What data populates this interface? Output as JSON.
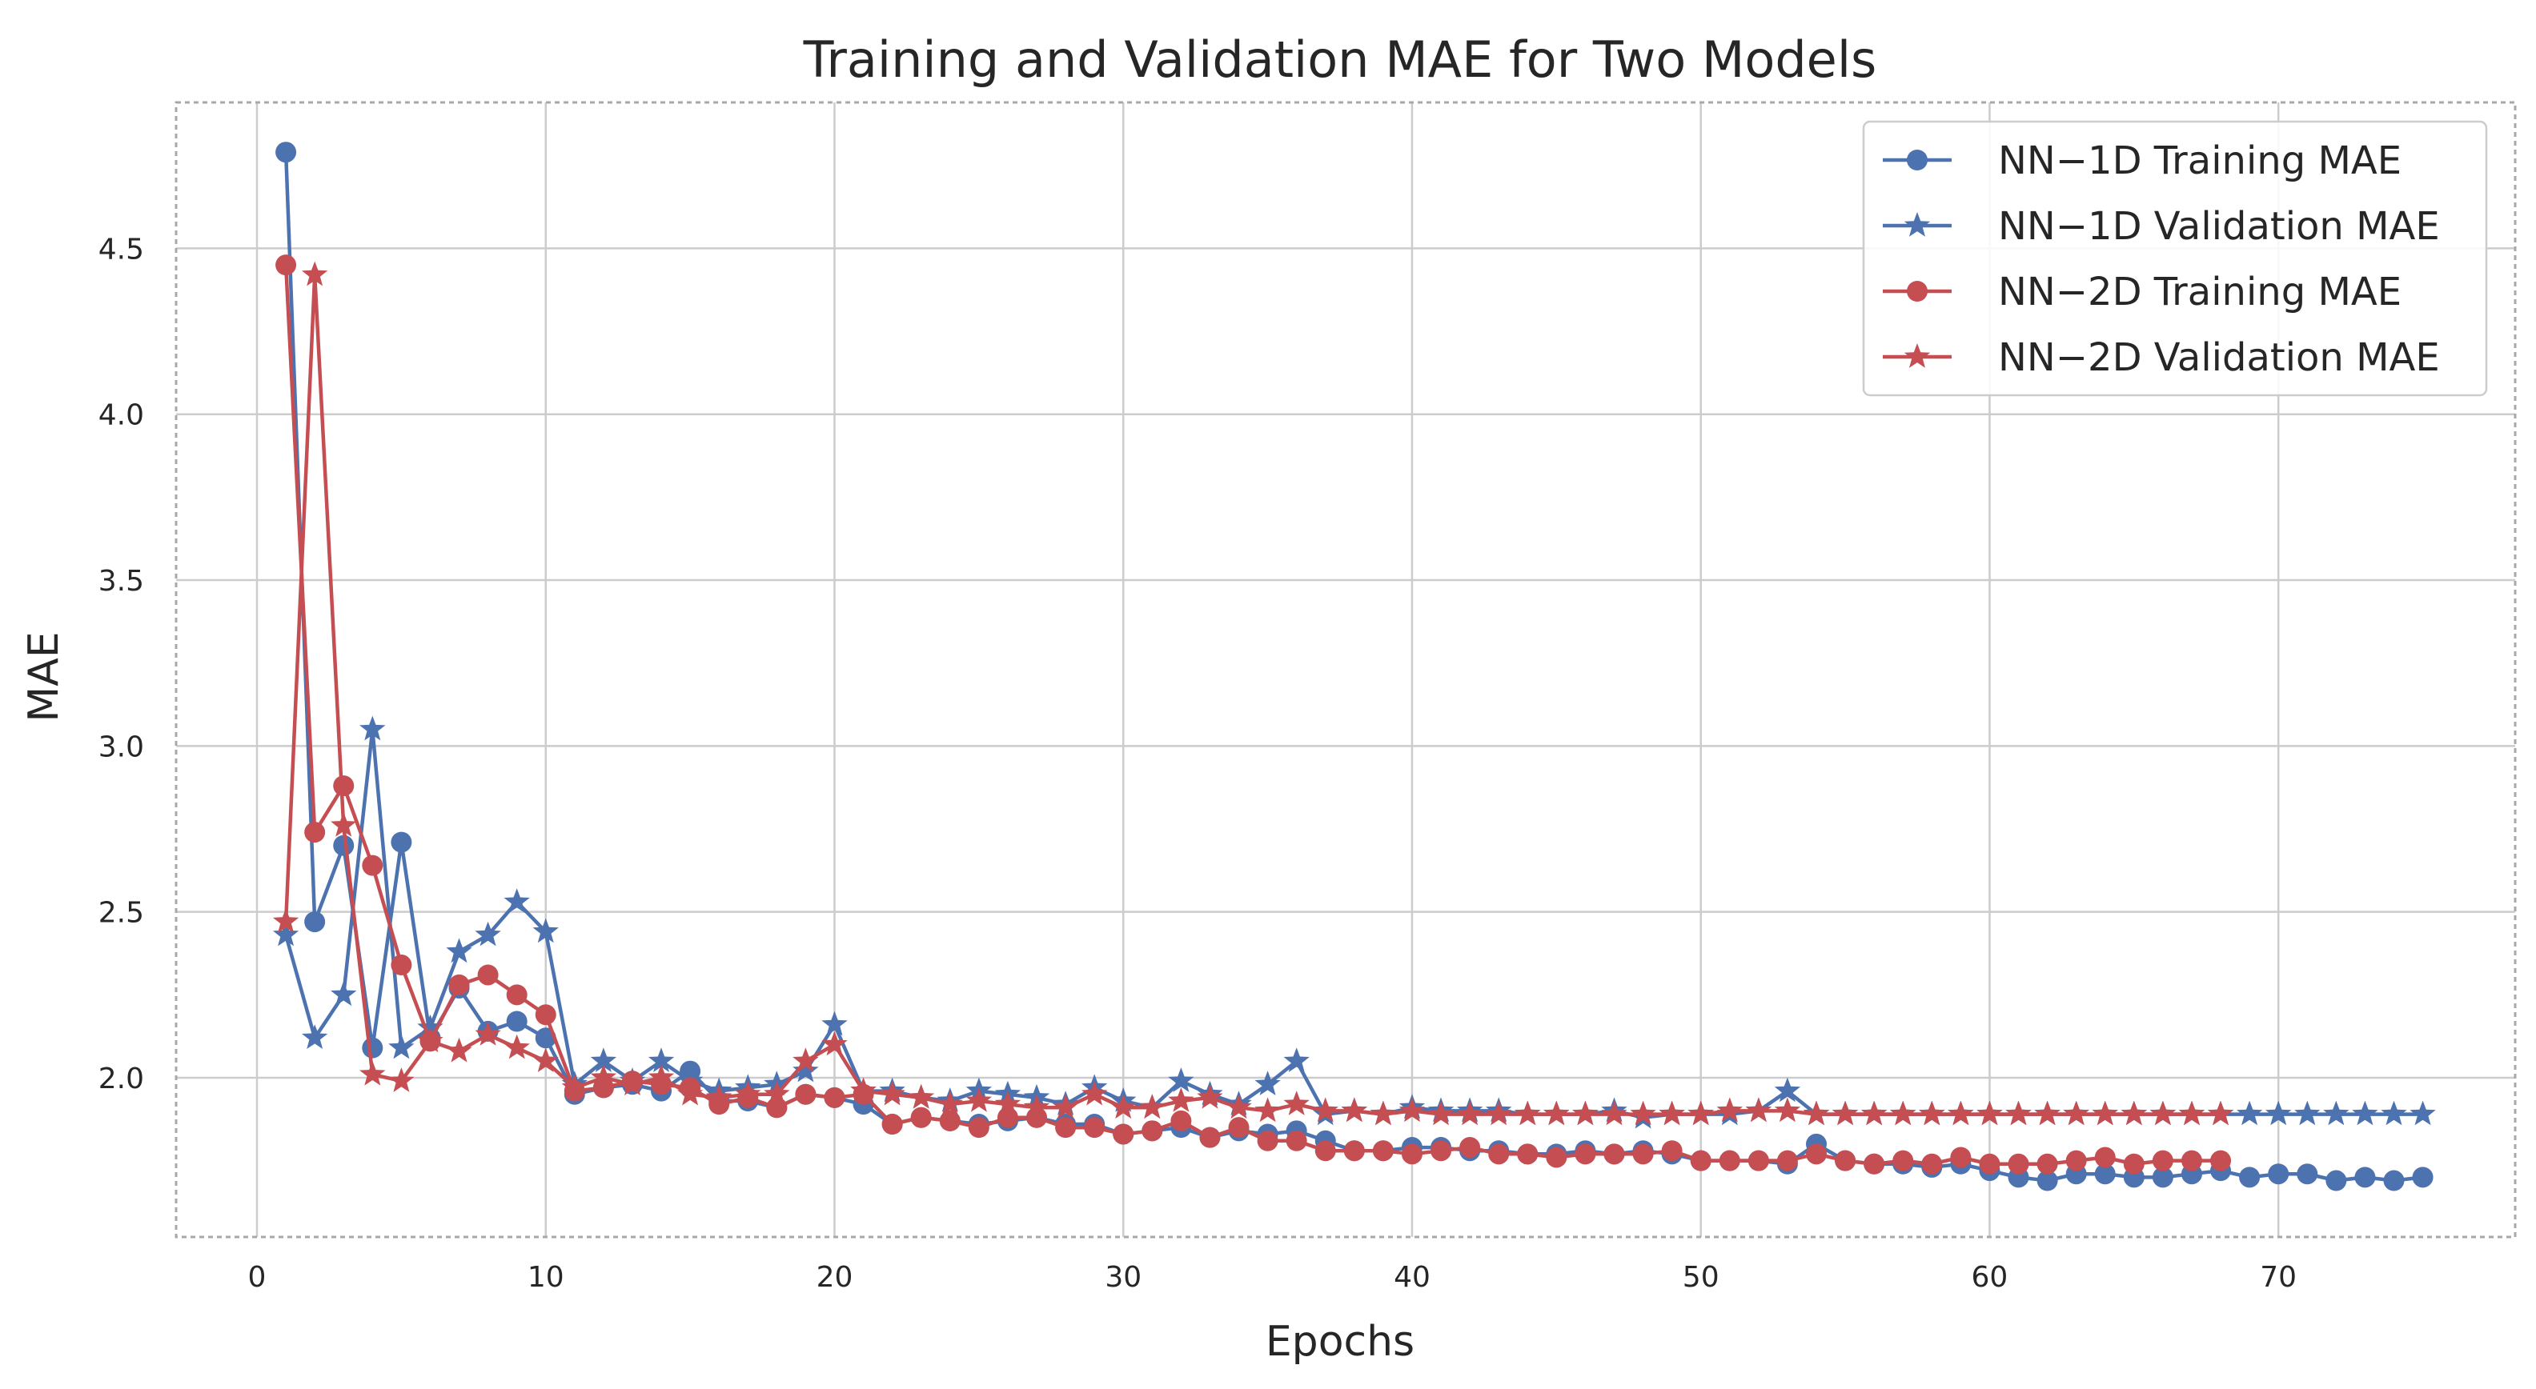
{
  "chart_data": {
    "type": "line",
    "title": "Training and Validation MAE for Two Models",
    "xlabel": "Epochs",
    "ylabel": "MAE",
    "xlim": [
      -2.8,
      78.2
    ],
    "ylim": [
      1.52,
      4.94
    ],
    "xticks": [
      0,
      10,
      20,
      30,
      40,
      50,
      60,
      70
    ],
    "yticks": [
      2.0,
      2.5,
      3.0,
      3.5,
      4.0,
      4.5
    ],
    "xtick_labels": [
      "0",
      "10",
      "20",
      "30",
      "40",
      "50",
      "60",
      "70"
    ],
    "ytick_labels": [
      "2.0",
      "2.5",
      "3.0",
      "3.5",
      "4.0",
      "4.5"
    ],
    "grid": true,
    "legend_position": "top-right",
    "series": [
      {
        "name": "NN−1D Training MAE",
        "color": "#4c72b0",
        "marker": "circle",
        "x": [
          1,
          2,
          3,
          4,
          5,
          6,
          7,
          8,
          9,
          10,
          11,
          12,
          13,
          14,
          15,
          16,
          17,
          18,
          19,
          20,
          21,
          22,
          23,
          24,
          25,
          26,
          27,
          28,
          29,
          30,
          31,
          32,
          33,
          34,
          35,
          36,
          37,
          38,
          39,
          40,
          41,
          42,
          43,
          44,
          45,
          46,
          47,
          48,
          49,
          50,
          51,
          52,
          53,
          54,
          55,
          56,
          57,
          58,
          59,
          60,
          61,
          62,
          63,
          64,
          65,
          66,
          67,
          68,
          69,
          70,
          71,
          72,
          73,
          74,
          75
        ],
        "values": [
          4.79,
          2.47,
          2.7,
          2.09,
          2.71,
          2.12,
          2.27,
          2.14,
          2.17,
          2.12,
          1.95,
          1.97,
          1.98,
          1.96,
          2.02,
          1.93,
          1.93,
          1.91,
          1.95,
          1.94,
          1.92,
          1.86,
          1.88,
          1.87,
          1.86,
          1.87,
          1.88,
          1.86,
          1.86,
          1.83,
          1.84,
          1.85,
          1.82,
          1.84,
          1.83,
          1.84,
          1.81,
          1.78,
          1.78,
          1.79,
          1.79,
          1.78,
          1.78,
          1.77,
          1.77,
          1.78,
          1.77,
          1.78,
          1.77,
          1.75,
          1.75,
          1.75,
          1.74,
          1.8,
          1.75,
          1.74,
          1.74,
          1.73,
          1.74,
          1.72,
          1.7,
          1.69,
          1.71,
          1.71,
          1.7,
          1.7,
          1.71,
          1.72,
          1.7,
          1.71,
          1.71,
          1.69,
          1.7,
          1.69,
          1.7
        ]
      },
      {
        "name": "NN−1D Validation MAE",
        "color": "#4c72b0",
        "marker": "star",
        "x": [
          1,
          2,
          3,
          4,
          5,
          6,
          7,
          8,
          9,
          10,
          11,
          12,
          13,
          14,
          15,
          16,
          17,
          18,
          19,
          20,
          21,
          22,
          23,
          24,
          25,
          26,
          27,
          28,
          29,
          30,
          31,
          32,
          33,
          34,
          35,
          36,
          37,
          38,
          39,
          40,
          41,
          42,
          43,
          44,
          45,
          46,
          47,
          48,
          49,
          50,
          51,
          52,
          53,
          54,
          55,
          56,
          57,
          58,
          59,
          60,
          61,
          62,
          63,
          64,
          65,
          66,
          67,
          68,
          69,
          70,
          71,
          72,
          73,
          74,
          75
        ],
        "values": [
          2.43,
          2.12,
          2.25,
          3.05,
          2.09,
          2.15,
          2.38,
          2.43,
          2.53,
          2.44,
          1.98,
          2.05,
          1.99,
          2.05,
          1.99,
          1.96,
          1.97,
          1.98,
          2.02,
          2.16,
          1.96,
          1.96,
          1.94,
          1.93,
          1.96,
          1.95,
          1.94,
          1.92,
          1.97,
          1.93,
          1.91,
          1.99,
          1.95,
          1.92,
          1.98,
          2.05,
          1.89,
          1.9,
          1.89,
          1.91,
          1.9,
          1.9,
          1.9,
          1.89,
          1.89,
          1.89,
          1.9,
          1.88,
          1.89,
          1.89,
          1.89,
          1.9,
          1.96,
          1.89,
          1.89,
          1.89,
          1.89,
          1.89,
          1.89,
          1.89,
          1.89,
          1.89,
          1.89,
          1.89,
          1.89,
          1.89,
          1.89,
          1.89,
          1.89,
          1.89,
          1.89,
          1.89,
          1.89,
          1.89,
          1.89
        ]
      },
      {
        "name": "NN−2D Training MAE",
        "color": "#c44e52",
        "marker": "circle",
        "x": [
          1,
          2,
          3,
          4,
          5,
          6,
          7,
          8,
          9,
          10,
          11,
          12,
          13,
          14,
          15,
          16,
          17,
          18,
          19,
          20,
          21,
          22,
          23,
          24,
          25,
          26,
          27,
          28,
          29,
          30,
          31,
          32,
          33,
          34,
          35,
          36,
          37,
          38,
          39,
          40,
          41,
          42,
          43,
          44,
          45,
          46,
          47,
          48,
          49,
          50,
          51,
          52,
          53,
          54,
          55,
          56,
          57,
          58,
          59,
          60,
          61,
          62,
          63,
          64,
          65,
          66,
          67,
          68
        ],
        "values": [
          4.45,
          2.74,
          2.88,
          2.64,
          2.34,
          2.11,
          2.28,
          2.31,
          2.25,
          2.19,
          1.96,
          1.97,
          1.99,
          1.98,
          1.97,
          1.92,
          1.94,
          1.91,
          1.95,
          1.94,
          1.95,
          1.86,
          1.88,
          1.87,
          1.85,
          1.88,
          1.88,
          1.85,
          1.85,
          1.83,
          1.84,
          1.87,
          1.82,
          1.85,
          1.81,
          1.81,
          1.78,
          1.78,
          1.78,
          1.77,
          1.78,
          1.79,
          1.77,
          1.77,
          1.76,
          1.77,
          1.77,
          1.77,
          1.78,
          1.75,
          1.75,
          1.75,
          1.75,
          1.77,
          1.75,
          1.74,
          1.75,
          1.74,
          1.76,
          1.74,
          1.74,
          1.74,
          1.75,
          1.76,
          1.74,
          1.75,
          1.75,
          1.75
        ]
      },
      {
        "name": "NN−2D Validation MAE",
        "color": "#c44e52",
        "marker": "star",
        "x": [
          1,
          2,
          3,
          4,
          5,
          6,
          7,
          8,
          9,
          10,
          11,
          12,
          13,
          14,
          15,
          16,
          17,
          18,
          19,
          20,
          21,
          22,
          23,
          24,
          25,
          26,
          27,
          28,
          29,
          30,
          31,
          32,
          33,
          34,
          35,
          36,
          37,
          38,
          39,
          40,
          41,
          42,
          43,
          44,
          45,
          46,
          47,
          48,
          49,
          50,
          51,
          52,
          53,
          54,
          55,
          56,
          57,
          58,
          59,
          60,
          61,
          62,
          63,
          64,
          65,
          66,
          67,
          68
        ],
        "values": [
          2.47,
          4.42,
          2.76,
          2.01,
          1.99,
          2.11,
          2.08,
          2.13,
          2.09,
          2.05,
          1.97,
          2.0,
          1.98,
          2.0,
          1.95,
          1.94,
          1.95,
          1.95,
          2.05,
          2.1,
          1.96,
          1.95,
          1.94,
          1.92,
          1.93,
          1.92,
          1.91,
          1.91,
          1.95,
          1.91,
          1.91,
          1.93,
          1.94,
          1.91,
          1.9,
          1.92,
          1.9,
          1.9,
          1.89,
          1.9,
          1.89,
          1.89,
          1.89,
          1.89,
          1.89,
          1.89,
          1.89,
          1.89,
          1.89,
          1.89,
          1.9,
          1.9,
          1.9,
          1.89,
          1.89,
          1.89,
          1.89,
          1.89,
          1.89,
          1.89,
          1.89,
          1.89,
          1.89,
          1.89,
          1.89,
          1.89,
          1.89,
          1.89
        ]
      }
    ]
  }
}
